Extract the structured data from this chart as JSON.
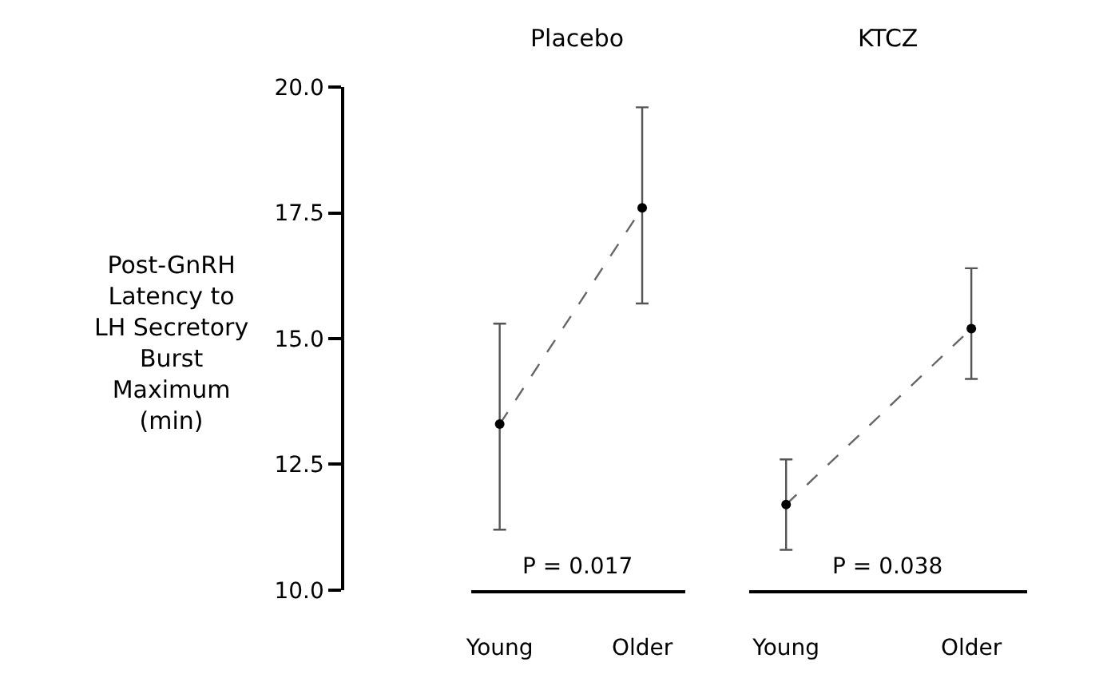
{
  "chart_data": [
    {
      "type": "line",
      "title": "Placebo",
      "ylabel": "Post-GnRH Latency to LH Secretory Burst Maximum (min)",
      "categories": [
        "Young",
        "Older"
      ],
      "series": [
        {
          "color": "#000000",
          "values": [
            13.3,
            17.6
          ],
          "errors": [
            [
              11.2,
              15.3
            ],
            [
              15.7,
              19.6
            ]
          ]
        }
      ],
      "ylim": [
        10,
        20
      ],
      "yticks": [
        {
          "value": 10,
          "label": "10.0"
        },
        {
          "value": 12.5,
          "label": "12.5"
        },
        {
          "value": 15,
          "label": "15.0"
        },
        {
          "value": 17.5,
          "label": "17.5"
        },
        {
          "value": 20,
          "label": "20.0"
        }
      ],
      "line_style": "dashed",
      "marker": "circle",
      "annotations": [
        "P = 0.017"
      ]
    },
    {
      "type": "line",
      "title": "KTCZ",
      "categories": [
        "Young",
        "Older"
      ],
      "series": [
        {
          "color": "#000000",
          "values": [
            11.7,
            15.2
          ],
          "errors": [
            [
              10.8,
              12.6
            ],
            [
              14.2,
              16.4
            ]
          ]
        }
      ],
      "ylim": [
        10,
        20
      ],
      "tick_labels": "x",
      "line_style": "dashed",
      "marker": "circle",
      "annotations": [
        "P = 0.038"
      ]
    }
  ]
}
